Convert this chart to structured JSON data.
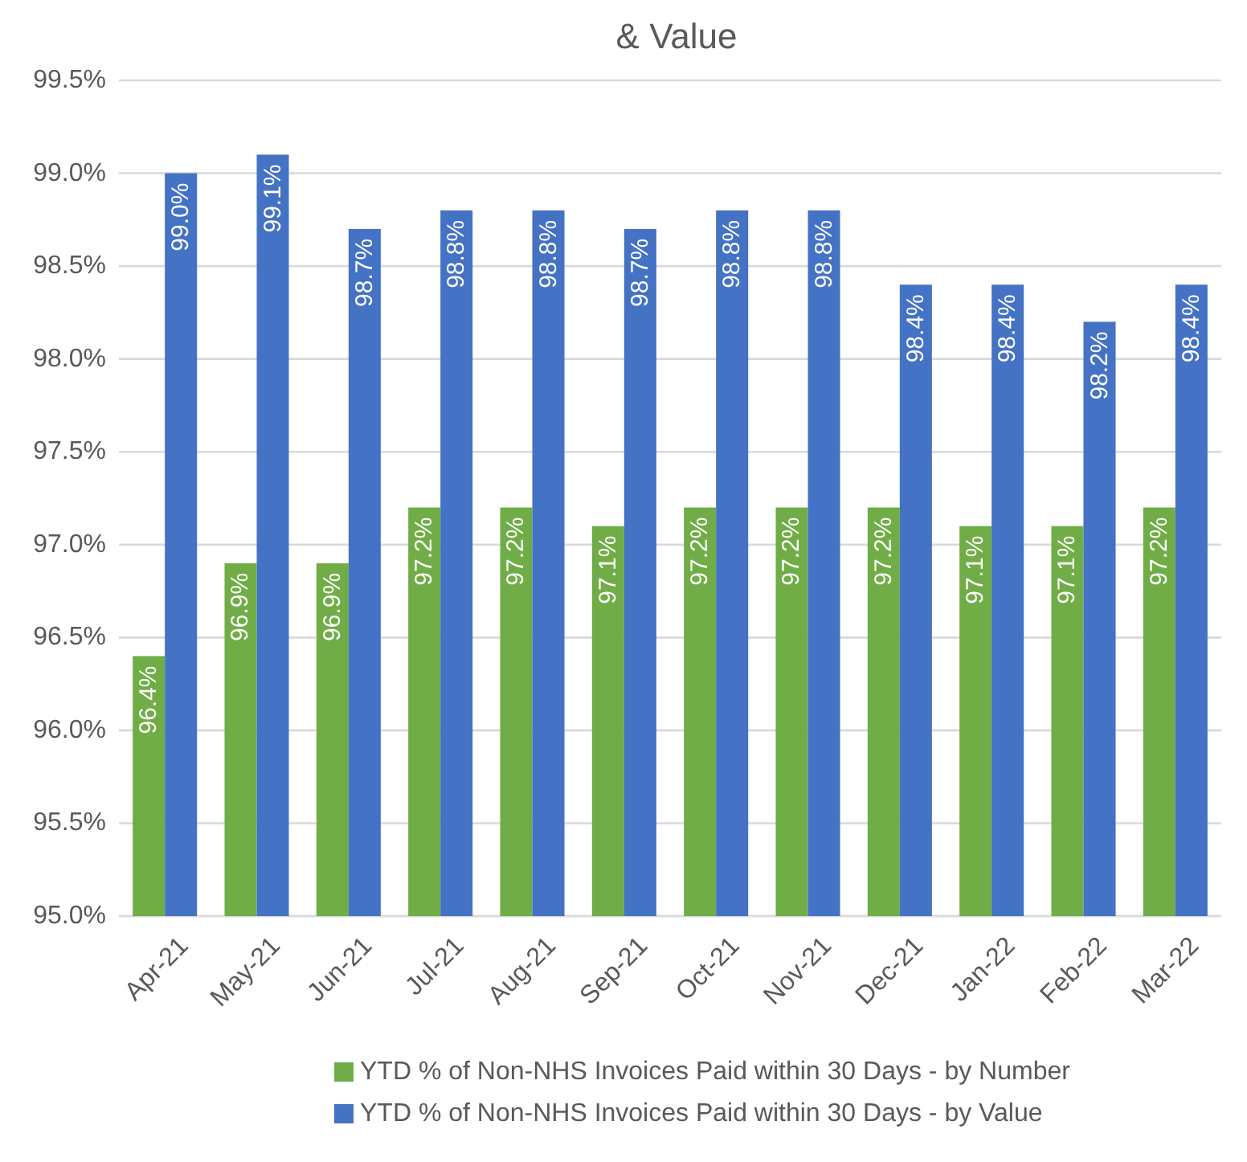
{
  "chart_data": {
    "type": "bar",
    "title": "& Value",
    "categories": [
      "Apr-21",
      "May-21",
      "Jun-21",
      "Jul-21",
      "Aug-21",
      "Sep-21",
      "Oct-21",
      "Nov-21",
      "Dec-21",
      "Jan-22",
      "Feb-22",
      "Mar-22"
    ],
    "series": [
      {
        "name": "YTD % of Non-NHS Invoices Paid within 30 Days - by Number",
        "color": "#70ad47",
        "values": [
          96.4,
          96.9,
          96.9,
          97.2,
          97.2,
          97.1,
          97.2,
          97.2,
          97.2,
          97.1,
          97.1,
          97.2
        ],
        "value_labels": [
          "96.4%",
          "96.9%",
          "96.9%",
          "97.2%",
          "97.2%",
          "97.1%",
          "97.2%",
          "97.2%",
          "97.2%",
          "97.1%",
          "97.1%",
          "97.2%"
        ]
      },
      {
        "name": "YTD % of Non-NHS Invoices Paid within 30 Days - by Value",
        "color": "#4472c4",
        "values": [
          99.0,
          99.1,
          98.7,
          98.8,
          98.8,
          98.7,
          98.8,
          98.8,
          98.4,
          98.4,
          98.2,
          98.4
        ],
        "value_labels": [
          "99.0%",
          "99.1%",
          "98.7%",
          "98.8%",
          "98.8%",
          "98.7%",
          "98.8%",
          "98.8%",
          "98.4%",
          "98.4%",
          "98.2%",
          "98.4%"
        ]
      }
    ],
    "ylim": [
      95,
      99.5
    ],
    "yticks": [
      {
        "value": 95,
        "label": "95.0%"
      },
      {
        "value": 95.5,
        "label": "95.5%"
      },
      {
        "value": 96,
        "label": "96.0%"
      },
      {
        "value": 96.5,
        "label": "96.5%"
      },
      {
        "value": 97,
        "label": "97.0%"
      },
      {
        "value": 97.5,
        "label": "97.5%"
      },
      {
        "value": 98,
        "label": "98.0%"
      },
      {
        "value": 98.5,
        "label": "98.5%"
      },
      {
        "value": 99,
        "label": "99.0%"
      },
      {
        "value": 99.5,
        "label": "99.5%"
      }
    ],
    "grid": "y",
    "legend": "bottom"
  }
}
